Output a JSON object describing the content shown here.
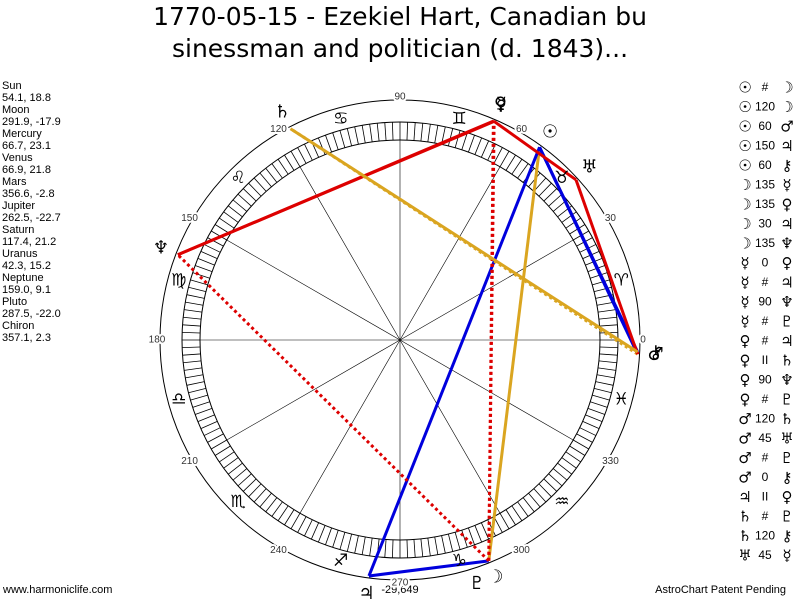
{
  "title": [
    "1770-05-15 - Ezekiel Hart, Canadian bu",
    "sinessman and politician (d. 1843)..."
  ],
  "planets": [
    {
      "name": "Sun",
      "symbol": "☉",
      "position": "54.1, 18.8"
    },
    {
      "name": "Moon",
      "symbol": "☽",
      "position": "291.9, -17.9"
    },
    {
      "name": "Mercury",
      "symbol": "☿",
      "position": "66.7, 23.1"
    },
    {
      "name": "Venus",
      "symbol": "♀",
      "position": "66.9, 21.8"
    },
    {
      "name": "Mars",
      "symbol": "♂",
      "position": "356.6, -2.8"
    },
    {
      "name": "Jupiter",
      "symbol": "♃",
      "position": "262.5, -22.7"
    },
    {
      "name": "Saturn",
      "symbol": "♄",
      "position": "117.4, 21.2"
    },
    {
      "name": "Uranus",
      "symbol": "♅",
      "position": "42.3, 15.2"
    },
    {
      "name": "Neptune",
      "symbol": "♆",
      "position": "159.0, 9.1"
    },
    {
      "name": "Pluto",
      "symbol": "♇",
      "position": "287.5, -22.0"
    },
    {
      "name": "Chiron",
      "symbol": "⚷",
      "position": "357.1, 2.3"
    }
  ],
  "aspects": [
    {
      "p1": "☉",
      "aspect": "#",
      "p2": "☽"
    },
    {
      "p1": "☉",
      "aspect": "120",
      "p2": "☽",
      "color": "#daa520",
      "style": "solid"
    },
    {
      "p1": "☉",
      "aspect": "60",
      "p2": "♂",
      "color": "#0000dd",
      "style": "solid"
    },
    {
      "p1": "☉",
      "aspect": "150",
      "p2": "♃",
      "color": "#0000dd",
      "style": "solid"
    },
    {
      "p1": "☉",
      "aspect": "60",
      "p2": "⚷",
      "color": "#0000dd",
      "style": "solid"
    },
    {
      "p1": "☽",
      "aspect": "135",
      "p2": "☿",
      "color": "#dd0000",
      "style": "dotted"
    },
    {
      "p1": "☽",
      "aspect": "135",
      "p2": "♀",
      "color": "#dd0000",
      "style": "dotted"
    },
    {
      "p1": "☽",
      "aspect": "30",
      "p2": "♃",
      "color": "#0000dd",
      "style": "solid"
    },
    {
      "p1": "☽",
      "aspect": "135",
      "p2": "♆",
      "color": "#dd0000",
      "style": "dotted"
    },
    {
      "p1": "☿",
      "aspect": "0",
      "p2": "♀",
      "color": "#dd0000",
      "style": "solid"
    },
    {
      "p1": "☿",
      "aspect": "#",
      "p2": "♃"
    },
    {
      "p1": "☿",
      "aspect": "90",
      "p2": "♆",
      "color": "#dd0000",
      "style": "solid"
    },
    {
      "p1": "☿",
      "aspect": "#",
      "p2": "♇"
    },
    {
      "p1": "♀",
      "aspect": "#",
      "p2": "♃"
    },
    {
      "p1": "♀",
      "aspect": "II",
      "p2": "♄"
    },
    {
      "p1": "♀",
      "aspect": "90",
      "p2": "♆",
      "color": "#dd0000",
      "style": "solid"
    },
    {
      "p1": "♀",
      "aspect": "#",
      "p2": "♇"
    },
    {
      "p1": "♂",
      "aspect": "120",
      "p2": "♄",
      "color": "#daa520",
      "style": "dotted"
    },
    {
      "p1": "♂",
      "aspect": "45",
      "p2": "♅",
      "color": "#dd0000",
      "style": "solid"
    },
    {
      "p1": "♂",
      "aspect": "#",
      "p2": "♇"
    },
    {
      "p1": "♂",
      "aspect": "0",
      "p2": "⚷",
      "color": "#dd0000",
      "style": "solid"
    },
    {
      "p1": "♃",
      "aspect": "II",
      "p2": "♀"
    },
    {
      "p1": "♄",
      "aspect": "#",
      "p2": "♇"
    },
    {
      "p1": "♄",
      "aspect": "120",
      "p2": "⚷",
      "color": "#daa520",
      "style": "solid"
    },
    {
      "p1": "♅",
      "aspect": "45",
      "p2": "☿",
      "color": "#dd0000",
      "style": "solid"
    }
  ],
  "signs": [
    "♈",
    "♉",
    "♊",
    "♋",
    "♌",
    "♍",
    "♎",
    "♏",
    "♐",
    "♑",
    "♒",
    "♓"
  ],
  "degree_labels": [
    "0",
    "30",
    "60",
    "90",
    "120",
    "150",
    "180",
    "210",
    "240",
    "270",
    "300",
    "330"
  ],
  "bottom_label": "-29,649",
  "footer": {
    "left": "www.harmoniclife.com",
    "right": "AstroChart Patent Pending"
  }
}
